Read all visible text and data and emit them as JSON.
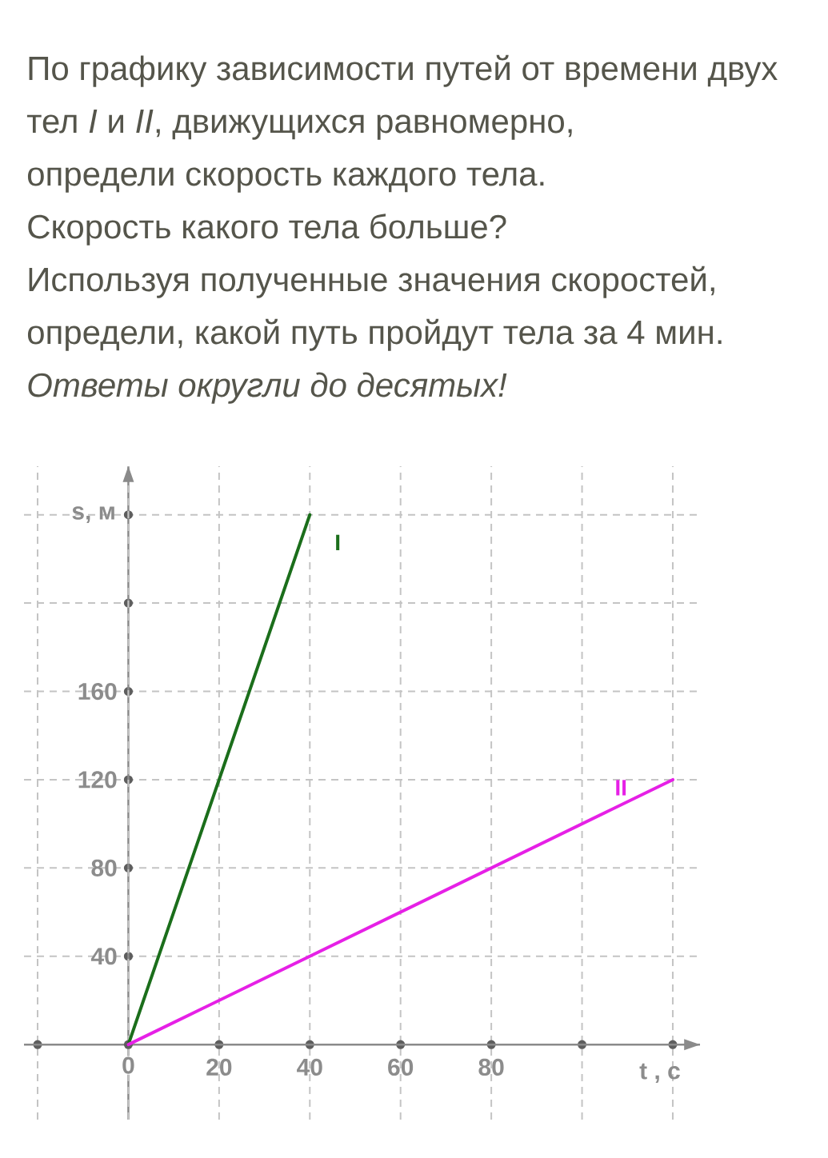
{
  "chart_data": {
    "type": "line",
    "title": "По графику зависимости путей от времени двух тел *I* и *II*, движущихся равномерно, определи скорость каждого тела.",
    "annotations": [
      "Скорость какого тела больше?",
      "Используя полученные значения скоростей, определи, какой путь пройдут тела за 4 мин.",
      "Ответы округли до десятых!"
    ],
    "xlabel": "t , c",
    "ylabel": "s, м",
    "series": [
      {
        "name": "I",
        "color": "#1b6e1b",
        "x": [
          0,
          40
        ],
        "values": [
          0,
          240
        ]
      },
      {
        "name": "II",
        "color": "#e620e6",
        "x": [
          0,
          120
        ],
        "values": [
          0,
          120
        ]
      }
    ],
    "xlim": [
      -23,
      126
    ],
    "ylim": [
      -34,
      262
    ],
    "xticks": [
      {
        "value": -20,
        "label": null
      },
      0,
      20,
      40,
      60,
      80,
      {
        "value": 100,
        "label": null
      },
      {
        "value": 120,
        "label": null
      }
    ],
    "yticks": [
      40,
      80,
      120,
      160,
      {
        "value": 200,
        "label": null
      },
      {
        "value": 240,
        "label": null
      }
    ],
    "grid": true
  }
}
